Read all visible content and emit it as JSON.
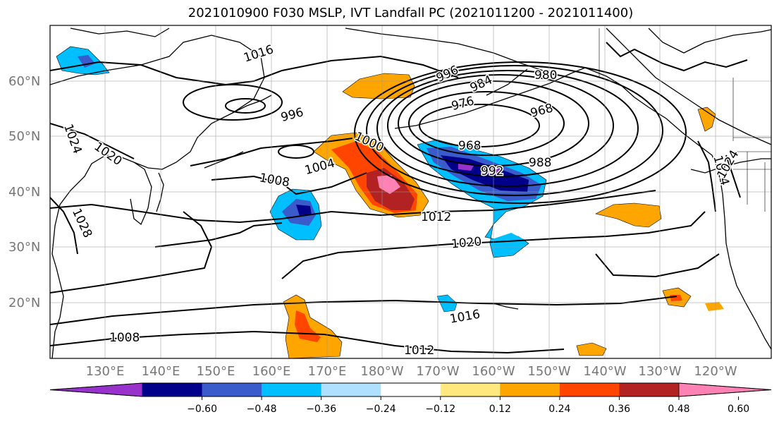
{
  "title": "2021010900 F030 MSLP, IVT Landfall PC (2021011200 - 2021011400)",
  "lat_labels": [
    "60°N",
    "50°N",
    "40°N",
    "30°N",
    "20°N"
  ],
  "lon_labels": [
    "130°E",
    "140°E",
    "150°E",
    "160°E",
    "170°E",
    "180°W",
    "170°W",
    "160°W",
    "150°W",
    "140°W",
    "130°W",
    "120°W"
  ],
  "contour_labels": [
    "1016",
    "996",
    "996",
    "984",
    "980",
    "976",
    "968",
    "968",
    "1000",
    "1004",
    "1008",
    "992",
    "988",
    "1012",
    "1020",
    "1016",
    "1012",
    "1008",
    "1024",
    "1020",
    "1028",
    "1024",
    "1024"
  ],
  "colorbar": {
    "ticks": [
      "−0.60",
      "−0.48",
      "−0.36",
      "−0.24",
      "−0.12",
      "0.12",
      "0.24",
      "0.36",
      "0.48",
      "0.60"
    ],
    "colors": [
      "#9932cc",
      "#00008b",
      "#3a5bcc",
      "#00bfff",
      "#b0e0ff",
      "#ffffff",
      "#ffe97f",
      "#ffa500",
      "#ff4500",
      "#b22222",
      "#ff82b4"
    ]
  }
}
